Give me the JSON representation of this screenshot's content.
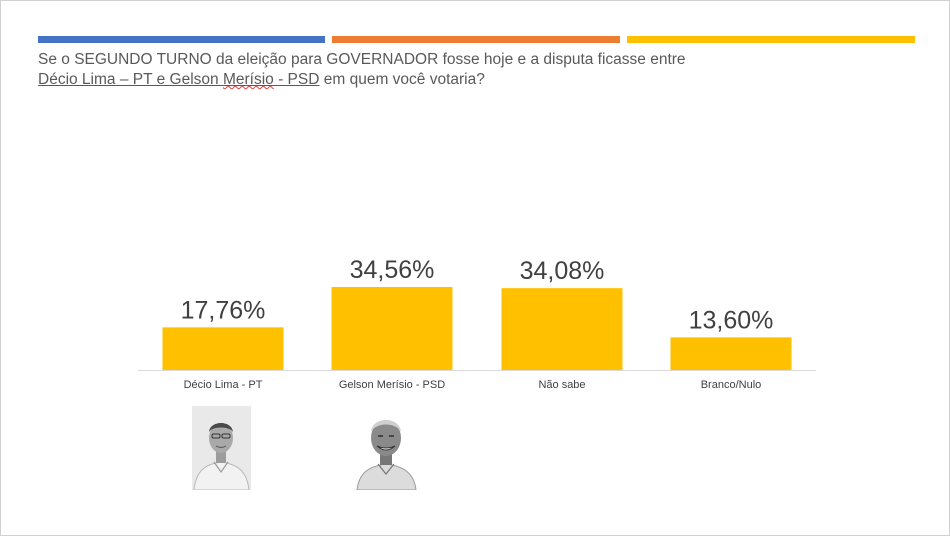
{
  "header": {
    "stripes": [
      "#4472c4",
      "#ed7d31",
      "#ffc000"
    ],
    "question_part1": "Se o SEGUNDO TURNO da eleição para GOVERNADOR fosse hoje e a disputa ficasse entre",
    "question_candidates_a": "Décio Lima – PT e Gelson ",
    "question_candidates_b": "Merísio",
    "question_candidates_c": " - PSD",
    "question_part2": " em quem você votaria?"
  },
  "chart_data": {
    "type": "bar",
    "categories": [
      "Décio Lima - PT",
      "Gelson Merísio - PSD",
      "Não sabe",
      "Branco/Nulo"
    ],
    "values": [
      17.76,
      34.56,
      34.08,
      13.6
    ],
    "value_labels": [
      "17,76%",
      "34,56%",
      "34,08%",
      "13,60%"
    ],
    "bar_color": "#ffc000",
    "ylim": [
      0,
      40
    ],
    "grid": false,
    "legend": "none"
  },
  "photos": [
    {
      "icon": "candidate-photo",
      "caption": ""
    },
    {
      "icon": "candidate-photo",
      "caption": ""
    }
  ]
}
